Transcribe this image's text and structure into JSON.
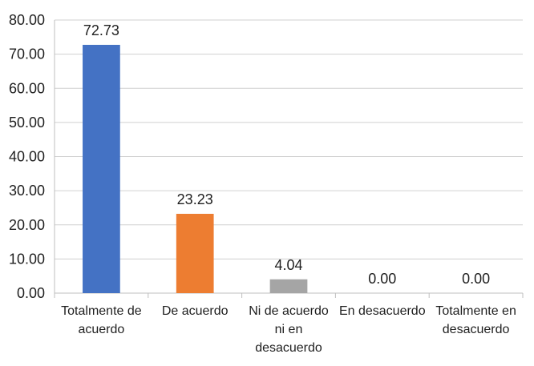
{
  "chart_data": {
    "type": "bar",
    "title": "",
    "xlabel": "",
    "ylabel": "",
    "categories": [
      [
        "Totalmente de",
        "acuerdo"
      ],
      [
        "De acuerdo"
      ],
      [
        "Ni de acuerdo",
        "ni en",
        "desacuerdo"
      ],
      [
        "En desacuerdo"
      ],
      [
        "Totalmente en",
        "desacuerdo"
      ]
    ],
    "values": [
      72.73,
      23.23,
      4.04,
      0.0,
      0.0
    ],
    "value_labels": [
      "72.73",
      "23.23",
      "4.04",
      "0.00",
      "0.00"
    ],
    "colors": [
      "#4472c4",
      "#ed7d31",
      "#a5a5a5",
      "#ffc000",
      "#5b9bd5"
    ],
    "ylim": [
      0,
      80
    ],
    "yticks": [
      "0.00",
      "10.00",
      "20.00",
      "30.00",
      "40.00",
      "50.00",
      "60.00",
      "70.00",
      "80.00"
    ],
    "grid": true,
    "legend": "none"
  }
}
